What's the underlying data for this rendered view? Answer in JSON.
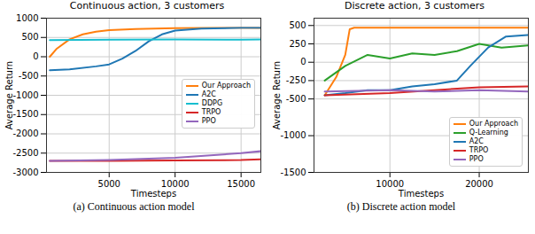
{
  "chart_data": [
    {
      "type": "line",
      "title": "Continuous action, 3 customers",
      "caption": "(a) Continuous action model",
      "x_label": "Timesteps",
      "y_label": "Average Return",
      "xlim": [
        250,
        16500
      ],
      "xticks": [
        5000,
        10000,
        15000
      ],
      "ylim": [
        -3000,
        1000
      ],
      "yticks": [
        -3000,
        -2500,
        -2000,
        -1500,
        -1000,
        -500,
        0,
        500,
        1000
      ],
      "grid": true,
      "legend": "center right",
      "series": [
        {
          "name": "Our Approach",
          "color": "#ff7f0e",
          "x": [
            500,
            1000,
            2000,
            3000,
            4000,
            5000,
            7000,
            10000,
            13000,
            16500
          ],
          "values": [
            0,
            200,
            450,
            580,
            650,
            690,
            720,
            740,
            750,
            750
          ]
        },
        {
          "name": "A2C",
          "color": "#1f77b4",
          "x": [
            500,
            2000,
            4000,
            5000,
            6000,
            7000,
            8000,
            9000,
            10000,
            12000,
            15000,
            16500
          ],
          "values": [
            -350,
            -330,
            -250,
            -200,
            -50,
            150,
            400,
            580,
            680,
            730,
            750,
            750
          ]
        },
        {
          "name": "DDPG",
          "color": "#17becf",
          "x": [
            500,
            5000,
            10000,
            15000,
            16500
          ],
          "values": [
            430,
            440,
            450,
            440,
            450
          ]
        },
        {
          "name": "TRPO",
          "color": "#d62728",
          "x": [
            500,
            5000,
            10000,
            15000,
            16500
          ],
          "values": [
            -2700,
            -2700,
            -2690,
            -2680,
            -2660
          ]
        },
        {
          "name": "PPO",
          "color": "#9467bd",
          "x": [
            500,
            5000,
            10000,
            15000,
            16500
          ],
          "values": [
            -2700,
            -2680,
            -2620,
            -2500,
            -2450
          ]
        }
      ]
    },
    {
      "type": "line",
      "title": "Discrete action, 3 customers",
      "caption": "(b) Discrete action model",
      "x_label": "Timesteps",
      "y_label": "Average Return",
      "xlim": [
        1500,
        25500
      ],
      "xticks": [
        10000,
        20000
      ],
      "ylim": [
        -1500,
        600
      ],
      "yticks": [
        -1500,
        -1000,
        -500,
        -250,
        0,
        250,
        500
      ],
      "grid": true,
      "legend": "lower right",
      "series": [
        {
          "name": "Our Approach",
          "color": "#ff7f0e",
          "x": [
            2700,
            4000,
            5000,
            5500,
            6000,
            10000,
            15000,
            20000,
            25500
          ],
          "values": [
            -450,
            -200,
            100,
            450,
            470,
            470,
            470,
            470,
            470
          ]
        },
        {
          "name": "Q-Learning",
          "color": "#2ca02c",
          "x": [
            2700,
            5000,
            7500,
            10000,
            12500,
            15000,
            17500,
            20000,
            22500,
            25500
          ],
          "values": [
            -250,
            -50,
            100,
            50,
            120,
            100,
            150,
            250,
            200,
            230
          ]
        },
        {
          "name": "A2C",
          "color": "#1f77b4",
          "x": [
            2700,
            5000,
            7500,
            10000,
            12500,
            15000,
            17500,
            19000,
            21000,
            23000,
            25500
          ],
          "values": [
            -450,
            -420,
            -380,
            -380,
            -330,
            -300,
            -250,
            -50,
            200,
            350,
            370
          ]
        },
        {
          "name": "TRPO",
          "color": "#d62728",
          "x": [
            2700,
            10000,
            15000,
            20000,
            25500
          ],
          "values": [
            -450,
            -420,
            -380,
            -340,
            -330
          ]
        },
        {
          "name": "PPO",
          "color": "#9467bd",
          "x": [
            2700,
            10000,
            15000,
            20000,
            25500
          ],
          "values": [
            -400,
            -380,
            -400,
            -380,
            -400
          ]
        }
      ]
    }
  ]
}
